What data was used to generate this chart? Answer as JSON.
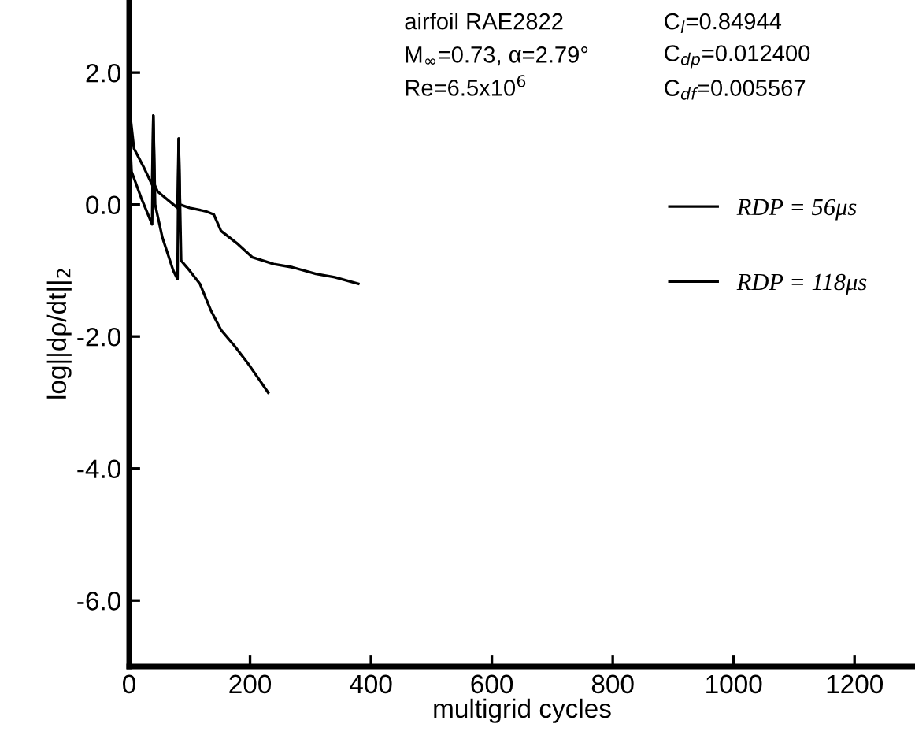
{
  "chart_data": {
    "type": "line",
    "xlabel": "multigrid cycles",
    "ylabel": "log||dρ/dt||$_{2}$",
    "xlim": [
      0,
      1300
    ],
    "ylim": [
      -7,
      3.1
    ],
    "xticks": [
      0,
      200,
      400,
      600,
      800,
      1000,
      1200
    ],
    "yticks": [
      {
        "value": -6,
        "label": "-6.0"
      },
      {
        "value": -4,
        "label": "-4.0"
      },
      {
        "value": -2,
        "label": "-2.0"
      },
      {
        "value": 0,
        "label": "0.0"
      },
      {
        "value": 2,
        "label": "2.0"
      }
    ],
    "grid": false,
    "legend": "right",
    "annotations": [
      "airfoil RAE2822",
      "M$_{∞}$=0.73, α=2.79°",
      "Re=6.5x10$^{6}$",
      "C$_{l}$=0.84944",
      "C$_{dp}$=0.012400",
      "C$_{df}$=0.005567"
    ],
    "series": [
      {
        "name": "RDP = 56μs",
        "color": "#000000",
        "x": [
          0,
          8,
          25,
          38,
          40,
          42,
          47,
          60,
          80,
          82,
          84,
          100,
          126,
          140,
          152,
          180,
          204,
          239,
          270,
          309,
          340,
          379
        ],
        "values": [
          1.5,
          0.85,
          0.55,
          0.3,
          1.35,
          0.3,
          0.2,
          0.1,
          -0.05,
          1.0,
          0.0,
          -0.05,
          -0.1,
          -0.15,
          -0.4,
          -0.6,
          -0.8,
          -0.9,
          -0.95,
          -1.05,
          -1.1,
          -1.2
        ]
      },
      {
        "name": "RDP = 118μs",
        "color": "#000000",
        "x": [
          0,
          4,
          20,
          38,
          40,
          43,
          55,
          73,
          80,
          82,
          86,
          100,
          117,
          135,
          152,
          175,
          196,
          215,
          230
        ],
        "values": [
          1.3,
          0.5,
          0.1,
          -0.3,
          1.35,
          0.0,
          -0.5,
          -1.0,
          -1.13,
          1.0,
          -0.85,
          -1.0,
          -1.2,
          -1.6,
          -1.9,
          -2.15,
          -2.4,
          -2.65,
          -2.85
        ]
      }
    ]
  }
}
